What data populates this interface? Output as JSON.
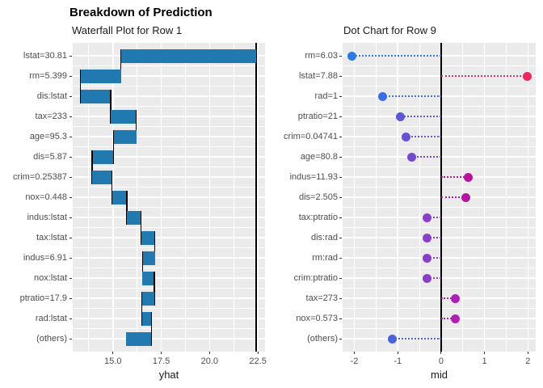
{
  "title": "Breakdown of Prediction",
  "waterfall": {
    "title": "Waterfall Plot for Row 1",
    "xlabel": "yhat"
  },
  "dotchart": {
    "title": "Dot Chart for Row 9",
    "xlabel": "mid"
  },
  "colors": {
    "panel_background": "#ebebeb",
    "gridline": "#ffffff",
    "bar_blue": "#2279b0",
    "reference_line": "#000000",
    "axis_text": "#4d4d4d"
  },
  "chart_data": [
    {
      "type": "bar",
      "subtype": "waterfall",
      "title": "Waterfall Plot for Row 1",
      "xlabel": "yhat",
      "ylabel": "",
      "xlim": [
        12.92,
        22.87
      ],
      "baseline_line": 22.4,
      "grid": true,
      "bar_color": "#2279b0",
      "x_major_ticks": [
        {
          "v": 15.0,
          "label": "15.0"
        },
        {
          "v": 17.5,
          "label": "17.5"
        },
        {
          "v": 20.0,
          "label": "20.0"
        },
        {
          "v": 22.5,
          "label": "22.5"
        }
      ],
      "x_minor_ticks": [
        13.75,
        16.25,
        18.75,
        21.25
      ],
      "categories": [
        "lstat=30.81",
        "rm=5.399",
        "dis:lstat",
        "tax=233",
        "age=95.3",
        "dis=5.87",
        "crim=0.25387",
        "nox=0.448",
        "indus:lstat",
        "tax:lstat",
        "indus=6.91",
        "nox:lstat",
        "ptratio=17.9",
        "rad:lstat",
        "(others)"
      ],
      "bars": [
        {
          "label": "lstat=30.81",
          "from": 22.4,
          "to": 15.42
        },
        {
          "label": "rm=5.399",
          "from": 15.42,
          "to": 13.33
        },
        {
          "label": "dis:lstat",
          "from": 13.33,
          "to": 14.89
        },
        {
          "label": "tax=233",
          "from": 14.89,
          "to": 16.21
        },
        {
          "label": "age=95.3",
          "from": 16.21,
          "to": 15.03
        },
        {
          "label": "dis=5.87",
          "from": 15.03,
          "to": 13.92
        },
        {
          "label": "crim=0.25387",
          "from": 13.92,
          "to": 14.95
        },
        {
          "label": "nox=0.448",
          "from": 14.95,
          "to": 15.72
        },
        {
          "label": "indus:lstat",
          "from": 15.72,
          "to": 16.46
        },
        {
          "label": "tax:lstat",
          "from": 16.46,
          "to": 17.17
        },
        {
          "label": "indus=6.91",
          "from": 17.17,
          "to": 16.53
        },
        {
          "label": "nox:lstat",
          "from": 16.53,
          "to": 17.15
        },
        {
          "label": "ptratio=17.9",
          "from": 17.15,
          "to": 16.5
        },
        {
          "label": "rad:lstat",
          "from": 16.5,
          "to": 16.99
        },
        {
          "label": "(others)",
          "from": 16.99,
          "to": 15.67
        }
      ]
    },
    {
      "type": "scatter",
      "subtype": "dot",
      "title": "Dot Chart for Row 9",
      "xlabel": "mid",
      "ylabel": "",
      "xlim": [
        -2.27,
        2.18
      ],
      "zero_line": 0,
      "grid": true,
      "x_major_ticks": [
        {
          "v": -2,
          "label": "-2"
        },
        {
          "v": -1,
          "label": "-1"
        },
        {
          "v": 0,
          "label": "0"
        },
        {
          "v": 1,
          "label": "1"
        },
        {
          "v": 2,
          "label": "2"
        }
      ],
      "x_minor_ticks": [
        -1.5,
        -0.5,
        0.5,
        1.5
      ],
      "categories": [
        "rm=6.03",
        "lstat=7.88",
        "rad=1",
        "ptratio=21",
        "crim=0.04741",
        "age=80.8",
        "indus=11.93",
        "dis=2.505",
        "tax:ptratio",
        "dis:rad",
        "rm:rad",
        "crim:ptratio",
        "tax=273",
        "nox=0.573",
        "(others)"
      ],
      "points": [
        {
          "label": "rm=6.03",
          "value": -2.05,
          "color": "#2b7ce2"
        },
        {
          "label": "lstat=7.88",
          "value": 1.99,
          "color": "#f0275f"
        },
        {
          "label": "rad=1",
          "value": -1.34,
          "color": "#3e6ee4"
        },
        {
          "label": "ptratio=21",
          "value": -0.93,
          "color": "#5c57d6"
        },
        {
          "label": "crim=0.04741",
          "value": -0.81,
          "color": "#6950d2"
        },
        {
          "label": "age=80.8",
          "value": -0.68,
          "color": "#7549cd"
        },
        {
          "label": "indus=11.93",
          "value": 0.62,
          "color": "#ba12a0"
        },
        {
          "label": "dis=2.505",
          "value": 0.57,
          "color": "#b815a5"
        },
        {
          "label": "tax:ptratio",
          "value": -0.33,
          "color": "#8b3fc8"
        },
        {
          "label": "dis:rad",
          "value": -0.33,
          "color": "#8b3fc8"
        },
        {
          "label": "rm:rad",
          "value": -0.33,
          "color": "#8b3fc8"
        },
        {
          "label": "crim:ptratio",
          "value": -0.33,
          "color": "#8b3fc8"
        },
        {
          "label": "tax=273",
          "value": 0.32,
          "color": "#ae20b3"
        },
        {
          "label": "nox=0.573",
          "value": 0.32,
          "color": "#ae20b3"
        },
        {
          "label": "(others)",
          "value": -1.12,
          "color": "#4a62dc"
        }
      ]
    }
  ]
}
